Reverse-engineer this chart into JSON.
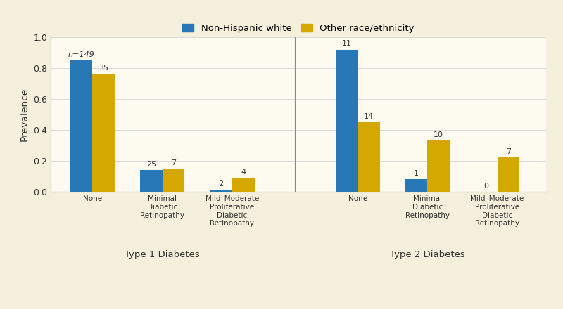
{
  "background_color": "#f5f0dc",
  "plot_bg_color": "#fdfbf0",
  "blue_color": "#2878b8",
  "yellow_color": "#d4a800",
  "ylabel": "Prevalence",
  "ylim": [
    0,
    1.0
  ],
  "yticks": [
    0.0,
    0.2,
    0.4,
    0.6,
    0.8,
    1.0
  ],
  "legend_labels": [
    "Non-Hispanic white",
    "Other race/ethnicity"
  ],
  "group_labels": [
    "None",
    "Minimal\nDiabetic\nRetinopathy",
    "Mild–Moderate\nProliferative\nDiabetic\nRetinopathy",
    "None",
    "Minimal\nDiabetic\nRetinopathy",
    "Mild–Moderate\nProliferative\nDiabetic\nRetinopathy"
  ],
  "diabetes_labels": [
    "Type 1 Diabetes",
    "Type 2 Diabetes"
  ],
  "blue_values": [
    0.85,
    0.14,
    0.01,
    0.92,
    0.08,
    0.0
  ],
  "yellow_values": [
    0.76,
    0.15,
    0.09,
    0.45,
    0.33,
    0.22
  ],
  "blue_annotations": [
    "n=149",
    "25",
    "2",
    "11",
    "1",
    "0"
  ],
  "yellow_annotations": [
    "35",
    "7",
    "4",
    "14",
    "10",
    "7"
  ],
  "bar_width": 0.32
}
